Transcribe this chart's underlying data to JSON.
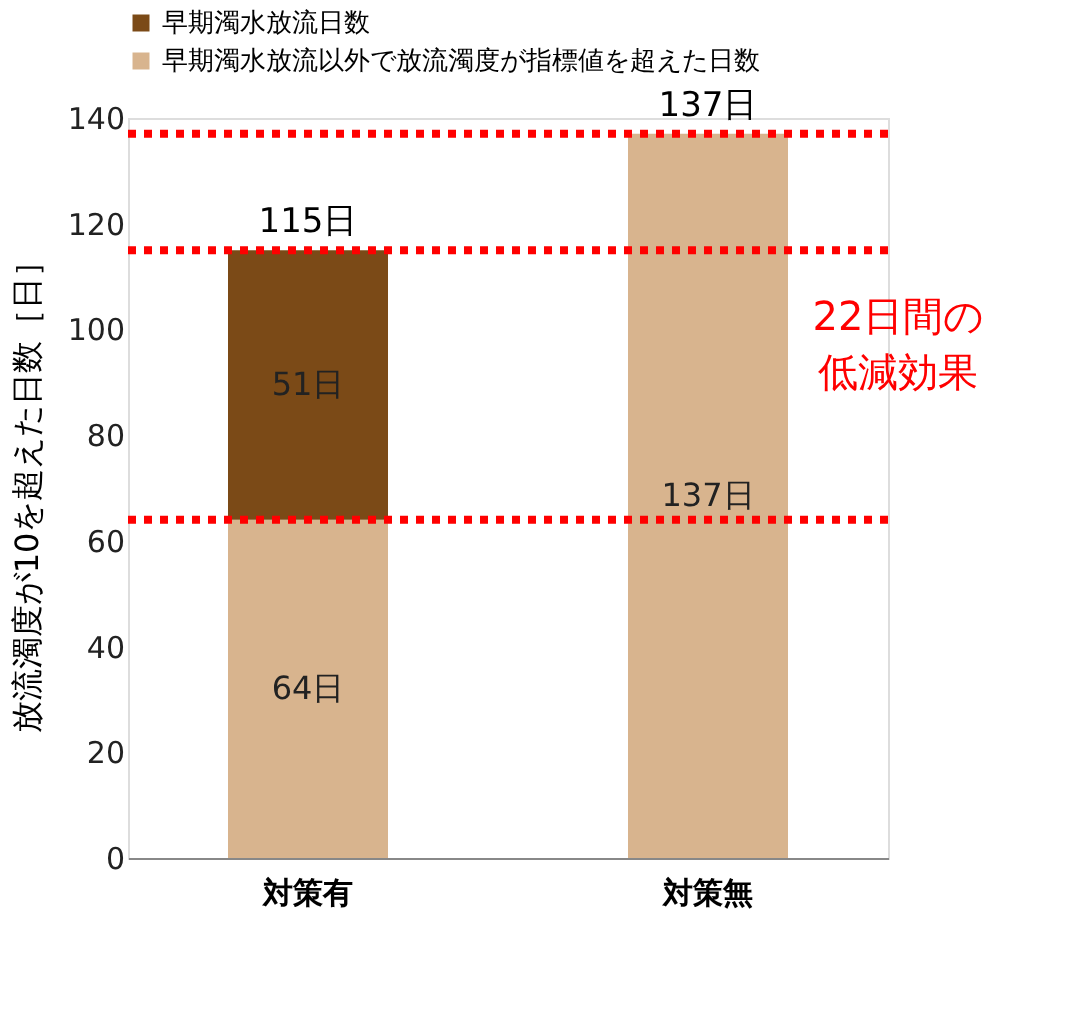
{
  "chart_data": {
    "type": "bar",
    "stacked": true,
    "categories": [
      "対策有",
      "対策無"
    ],
    "ylabel": "放流濁度が10を超えた日数［日］",
    "ylim": [
      0,
      140
    ],
    "yticks": [
      0,
      20,
      40,
      60,
      80,
      100,
      120,
      140
    ],
    "grid": false,
    "legend": "top left",
    "series": [
      {
        "name": "早期濁水放流以外で放流濁度が指標値を超えた日数",
        "color": "#d8b48e",
        "values": [
          64,
          137
        ],
        "value_labels": [
          "64日",
          "137日"
        ]
      },
      {
        "name": "早期濁水放流日数",
        "color": "#7b4a17",
        "values": [
          51,
          null
        ],
        "value_labels": [
          "51日",
          null
        ]
      }
    ],
    "totals": [
      "115日",
      "137日"
    ],
    "ref_lines": [
      {
        "axis": "y",
        "value": 137,
        "color": "#ff0000",
        "line_style": "dotted"
      },
      {
        "axis": "y",
        "value": 115,
        "color": "#ff0000",
        "line_style": "dotted"
      },
      {
        "axis": "y",
        "value": 64,
        "color": "#ff0000",
        "line_style": "dotted"
      }
    ],
    "annotations": [
      "22日間の",
      "低減効果"
    ]
  }
}
